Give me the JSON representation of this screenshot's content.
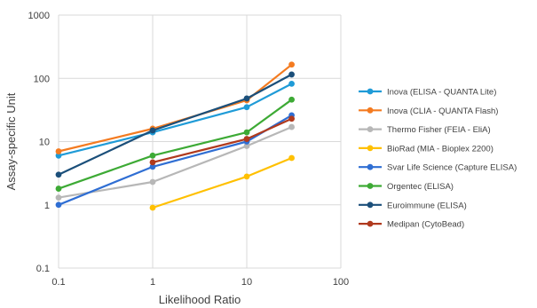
{
  "chart_data": {
    "type": "line",
    "xlabel": "Likelihood Ratio",
    "ylabel": "Assay-specific  Unit",
    "xscale": "log",
    "yscale": "log",
    "xlim": [
      0.1,
      100
    ],
    "ylim": [
      0.1,
      1000
    ],
    "xticks": [
      0.1,
      1,
      10,
      100
    ],
    "xtick_labels": [
      "0.1",
      "1",
      "10",
      "100"
    ],
    "yticks": [
      0.1,
      1,
      10,
      100,
      1000
    ],
    "ytick_labels": [
      "0.1",
      "1",
      "10",
      "100",
      "1000"
    ],
    "grid": "on",
    "legend_position": "right",
    "series": [
      {
        "name": "Inova (ELISA - QUANTA Lite)",
        "color": "#1f9bd7",
        "x": [
          0.1,
          1,
          10,
          30
        ],
        "y": [
          6,
          14,
          35,
          82
        ]
      },
      {
        "name": "Inova (CLIA - QUANTA Flash)",
        "color": "#f47b20",
        "x": [
          0.1,
          1,
          10,
          30
        ],
        "y": [
          7,
          16,
          45,
          165
        ]
      },
      {
        "name": "Thermo Fisher (FEIA - EliA)",
        "color": "#b7b7b7",
        "x": [
          0.1,
          1,
          10,
          30
        ],
        "y": [
          1.3,
          2.3,
          8.5,
          17
        ]
      },
      {
        "name": "BioRad (MIA - Bioplex 2200)",
        "color": "#ffc000",
        "x": [
          1,
          10,
          30
        ],
        "y": [
          0.9,
          2.8,
          5.5
        ]
      },
      {
        "name": "Svar Life Science (Capture ELISA)",
        "color": "#2f6ed3",
        "x": [
          0.1,
          1,
          10,
          30
        ],
        "y": [
          1,
          4,
          10,
          26
        ]
      },
      {
        "name": "Orgentec (ELISA)",
        "color": "#3daa35",
        "x": [
          0.1,
          1,
          10,
          30
        ],
        "y": [
          1.8,
          6,
          14,
          46
        ]
      },
      {
        "name": "Euroimmune (ELISA)",
        "color": "#1b4f7a",
        "x": [
          0.1,
          1,
          10,
          30
        ],
        "y": [
          3,
          15,
          48,
          115
        ]
      },
      {
        "name": "Medipan (CytoBead)",
        "color": "#b03a1e",
        "x": [
          1,
          10,
          30
        ],
        "y": [
          4.7,
          11,
          23
        ]
      }
    ]
  }
}
